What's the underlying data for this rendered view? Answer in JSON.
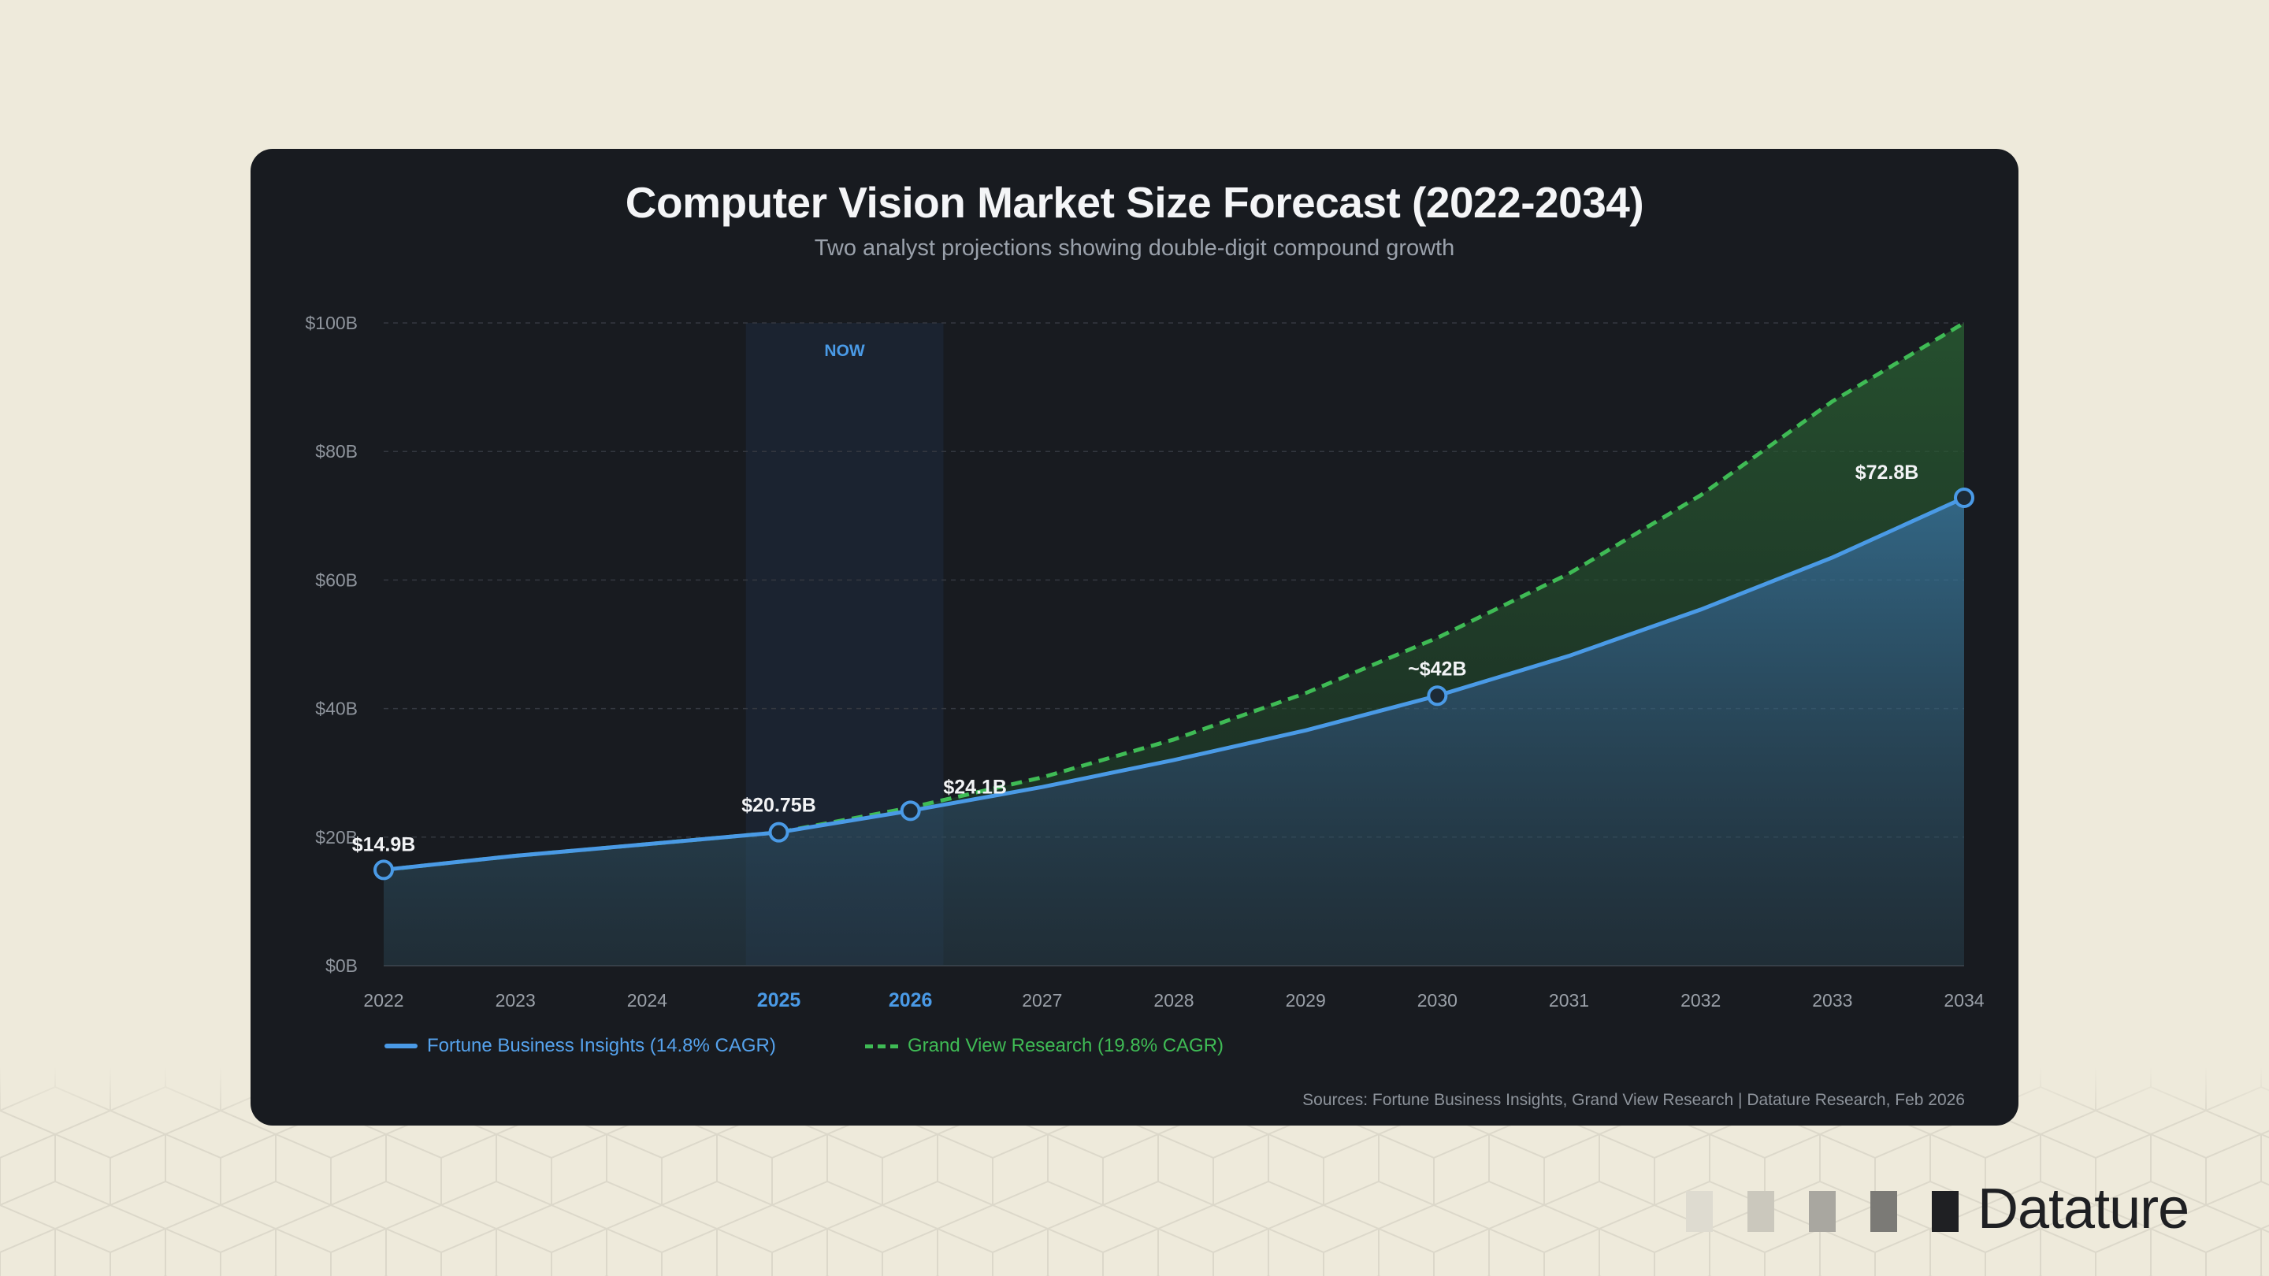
{
  "brand": {
    "name": "Datature",
    "logo_icon": "datature-logo-icon"
  },
  "colors": {
    "page_background": "#eeeadb",
    "card_background": "#181b20",
    "fortune": "#4a9ae6",
    "grandview": "#3fbb55",
    "highlight": "#1b2330"
  },
  "chart_data": {
    "type": "line",
    "title": "Computer Vision Market Size Forecast (2022-2034)",
    "subtitle": "Two analyst projections showing double-digit compound growth",
    "x": [
      "2022",
      "2023",
      "2024",
      "2025",
      "2026",
      "2027",
      "2028",
      "2029",
      "2030",
      "2031",
      "2032",
      "2033",
      "2034"
    ],
    "highlighted_x": [
      "2025",
      "2026"
    ],
    "y_ticks": [
      "$0B",
      "$20B",
      "$40B",
      "$60B",
      "$80B",
      "$100B"
    ],
    "ylim": [
      0,
      100
    ],
    "grid": true,
    "region_label": "NOW",
    "series": [
      {
        "name": "Fortune Business Insights (14.8% CAGR)",
        "style": "solid",
        "values": [
          14.9,
          17.1,
          18.9,
          20.75,
          24.1,
          27.8,
          32.0,
          36.6,
          42.0,
          48.2,
          55.4,
          63.5,
          72.8
        ]
      },
      {
        "name": "Grand View Research (19.8% CAGR)",
        "style": "dashed",
        "values": [
          14.9,
          17.1,
          18.9,
          20.75,
          24.6,
          29.3,
          35.2,
          42.4,
          51.0,
          61.0,
          73.2,
          87.8,
          100.0
        ]
      }
    ],
    "annotations": [
      {
        "x": "2022",
        "y": 14.9,
        "label": "$14.9B"
      },
      {
        "x": "2025",
        "y": 20.75,
        "label": "$20.75B"
      },
      {
        "x": "2026",
        "y": 24.1,
        "label": "$24.1B"
      },
      {
        "x": "2030",
        "y": 42.0,
        "label": "~$42B"
      },
      {
        "x": "2034",
        "y": 72.8,
        "label": "$72.8B"
      }
    ],
    "source": "Sources: Fortune Business Insights, Grand View Research | Datature Research, Feb 2026"
  }
}
